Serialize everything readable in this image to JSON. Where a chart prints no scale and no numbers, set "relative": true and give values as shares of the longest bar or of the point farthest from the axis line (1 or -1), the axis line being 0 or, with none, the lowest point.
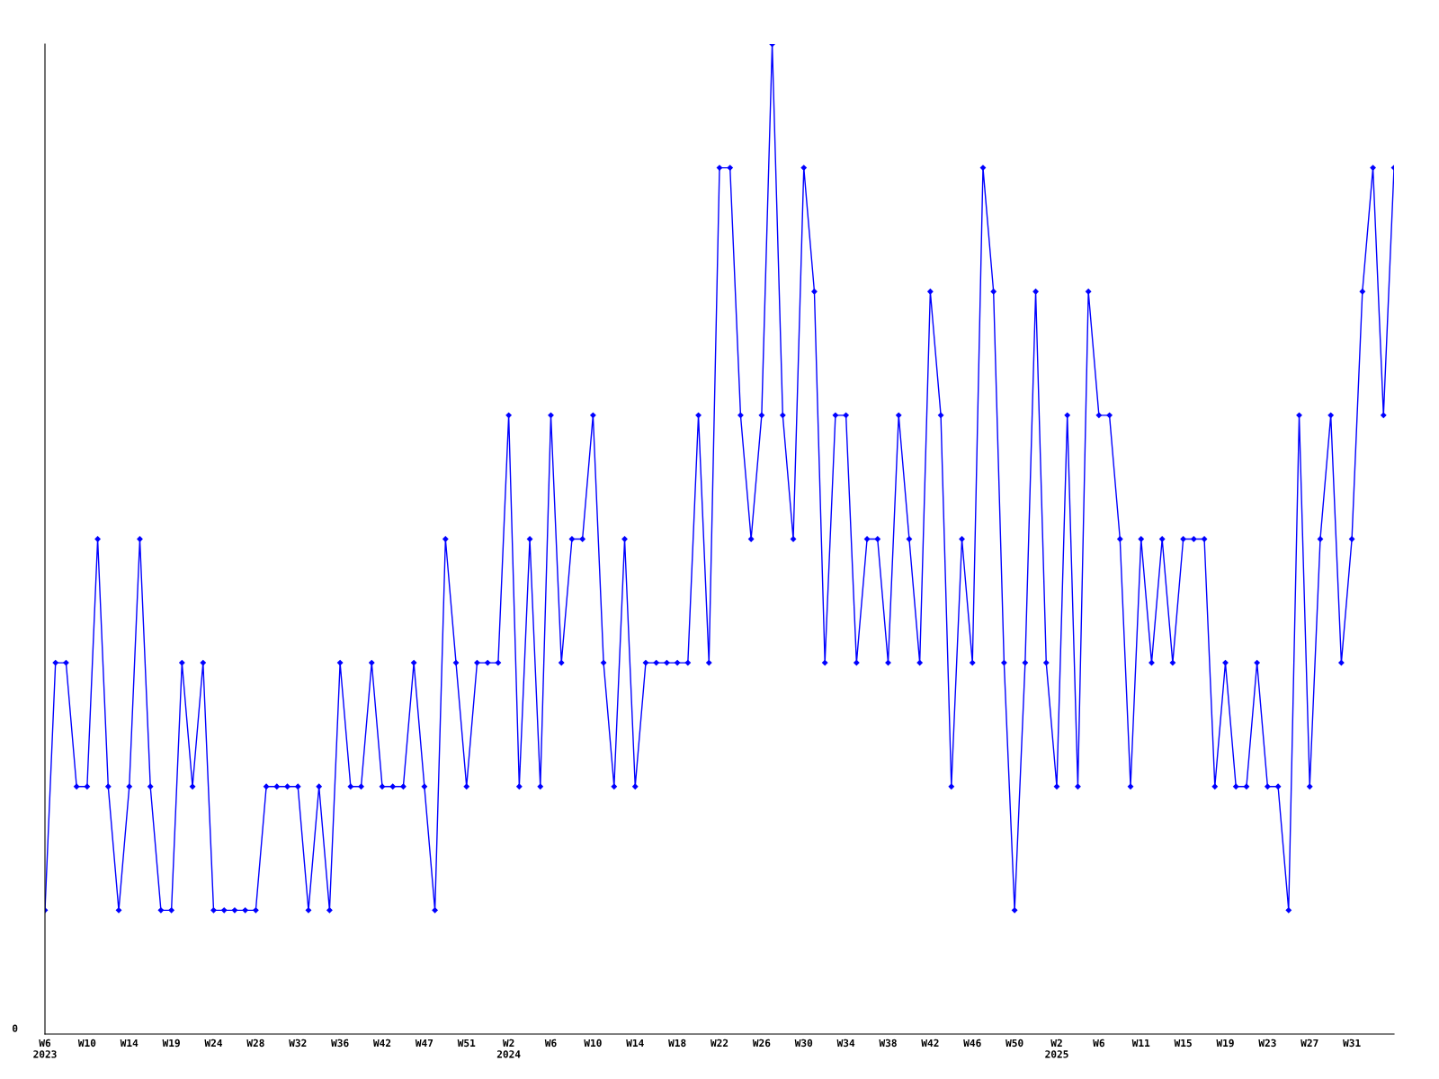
{
  "chart_data": {
    "type": "line",
    "relative": true,
    "annotations": [
      "0"
    ],
    "marker": "diamond",
    "line_style": "solid",
    "grid": false,
    "legend": false,
    "categories": [
      "W6\n2023",
      null,
      null,
      null,
      "W10",
      null,
      null,
      null,
      "W14",
      null,
      null,
      null,
      "W19",
      null,
      null,
      null,
      "W24",
      null,
      null,
      null,
      "W28",
      null,
      null,
      null,
      "W32",
      null,
      null,
      null,
      "W36",
      null,
      null,
      null,
      "W42",
      null,
      null,
      null,
      "W47",
      null,
      null,
      null,
      "W51",
      null,
      null,
      null,
      "W2\n2024",
      null,
      null,
      null,
      "W6",
      null,
      null,
      null,
      "W10",
      null,
      null,
      null,
      "W14",
      null,
      null,
      null,
      "W18",
      null,
      null,
      null,
      "W22",
      null,
      null,
      null,
      "W26",
      null,
      null,
      null,
      "W30",
      null,
      null,
      null,
      "W34",
      null,
      null,
      null,
      "W38",
      null,
      null,
      null,
      "W42",
      null,
      null,
      null,
      "W46",
      null,
      null,
      null,
      "W50",
      null,
      null,
      null,
      "W2\n2025",
      null,
      null,
      null,
      "W6",
      null,
      null,
      null,
      "W11",
      null,
      null,
      null,
      "W15",
      null,
      null,
      null,
      "W19",
      null,
      null,
      null,
      "W23",
      null,
      null,
      null,
      "W27",
      null,
      null,
      null,
      "W31",
      null,
      null,
      null,
      null
    ],
    "series": [
      {
        "color": "#0000ff",
        "values": [
          0.125,
          0.375,
          0.375,
          0.25,
          0.25,
          0.5,
          0.25,
          0.125,
          0.25,
          0.5,
          0.25,
          0.125,
          0.125,
          0.375,
          0.25,
          0.375,
          0.125,
          0.125,
          0.125,
          0.125,
          0.125,
          0.25,
          0.25,
          0.25,
          0.25,
          0.125,
          0.25,
          0.125,
          0.375,
          0.25,
          0.25,
          0.375,
          0.25,
          0.25,
          0.25,
          0.375,
          0.25,
          0.125,
          0.5,
          0.375,
          0.25,
          0.375,
          0.375,
          0.375,
          0.625,
          0.25,
          0.5,
          0.25,
          0.625,
          0.375,
          0.5,
          0.5,
          0.625,
          0.375,
          0.25,
          0.5,
          0.25,
          0.375,
          0.375,
          0.375,
          0.375,
          0.375,
          0.625,
          0.375,
          0.875,
          0.875,
          0.625,
          0.5,
          0.625,
          1,
          0.625,
          0.5,
          0.875,
          0.75,
          0.375,
          0.625,
          0.625,
          0.375,
          0.5,
          0.5,
          0.375,
          0.625,
          0.5,
          0.375,
          0.75,
          0.625,
          0.25,
          0.5,
          0.375,
          0.875,
          0.75,
          0.375,
          0.125,
          0.375,
          0.75,
          0.375,
          0.25,
          0.625,
          0.25,
          0.75,
          0.625,
          0.625,
          0.5,
          0.25,
          0.5,
          0.375,
          0.5,
          0.375,
          0.5,
          0.5,
          0.5,
          0.25,
          0.375,
          0.25,
          0.25,
          0.375,
          0.25,
          0.25,
          0.125,
          0.625,
          0.25,
          0.5,
          0.625,
          0.375,
          0.5,
          0.75,
          0.875,
          0.625,
          0.875
        ]
      }
    ]
  }
}
